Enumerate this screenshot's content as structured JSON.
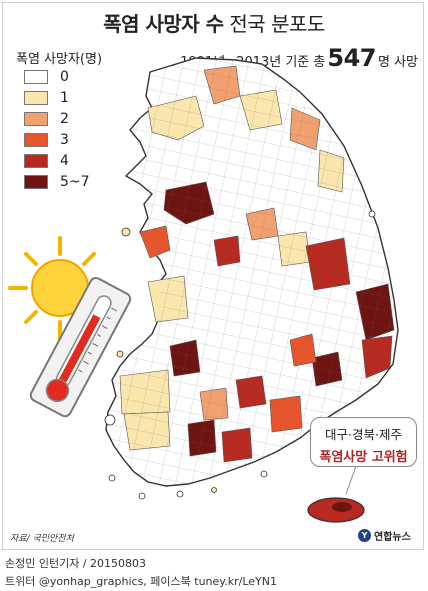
{
  "title": {
    "bold": "폭염 사망자 수",
    "light": "전국 분포도"
  },
  "legend": {
    "title": "폭염 사망자(명)",
    "items": [
      {
        "label": "0",
        "color": "#ffffff"
      },
      {
        "label": "1",
        "color": "#fbe6ad"
      },
      {
        "label": "2",
        "color": "#f2a070"
      },
      {
        "label": "3",
        "color": "#e8552c"
      },
      {
        "label": "4",
        "color": "#b82a20"
      },
      {
        "label": "5~7",
        "color": "#6e1512"
      }
    ]
  },
  "subtitle": {
    "prefix": "1991년~2013년 기준  총",
    "number": "547",
    "suffix": "명 사망"
  },
  "callout": {
    "line1": "대구·경북·제주",
    "line2": "폭염사망 고위험"
  },
  "source": "자료/ 국민안전처",
  "logo": "연합뉴스",
  "credit": {
    "line1": "손정민 인턴기자 / 20150803",
    "line2": "트위터 @yonhap_graphics, 페이스북 tuney.kr/LeYN1"
  },
  "illustration": {
    "sun": "sun-icon",
    "thermometer": "thermometer-icon"
  }
}
